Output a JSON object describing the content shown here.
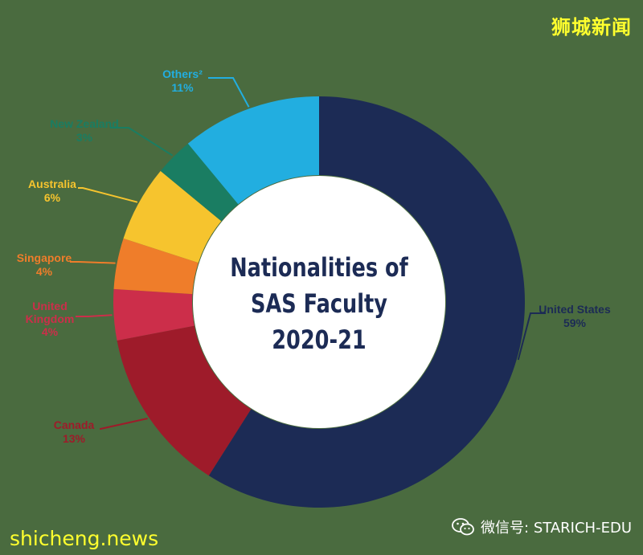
{
  "brand": "狮城新闻",
  "watermark": "shicheng.news",
  "wechat": {
    "label": "微信号: STARICH-EDU",
    "icon": "wechat-icon"
  },
  "colors": {
    "background": "#4a6b3f",
    "United States": "#1c2b55",
    "Canada": "#9e1b2a",
    "United Kingdom": "#cc2e4a",
    "Singapore": "#ef7d2a",
    "Australia": "#f6c42e",
    "New Zealand": "#1a7d62",
    "Others": "#22aee0"
  },
  "chart_data": {
    "type": "pie",
    "style": "donut",
    "title": "Nationalities of SAS Faculty 2020-21",
    "title_lines": [
      "Nationalities of",
      "SAS Faculty",
      "2020-21"
    ],
    "slices": [
      {
        "name": "United States",
        "label": "United States",
        "value": 59,
        "value_label": "59%"
      },
      {
        "name": "Canada",
        "label": "Canada",
        "value": 13,
        "value_label": "13%"
      },
      {
        "name": "United Kingdom",
        "label": "United Kingdom",
        "value": 4,
        "value_label": "4%"
      },
      {
        "name": "Singapore",
        "label": "Singapore",
        "value": 4,
        "value_label": "4%"
      },
      {
        "name": "Australia",
        "label": "Australia",
        "value": 6,
        "value_label": "6%"
      },
      {
        "name": "New Zealand",
        "label": "New Zealand",
        "value": 3,
        "value_label": "3%"
      },
      {
        "name": "Others",
        "label": "Others²",
        "value": 11,
        "value_label": "11%"
      }
    ]
  }
}
